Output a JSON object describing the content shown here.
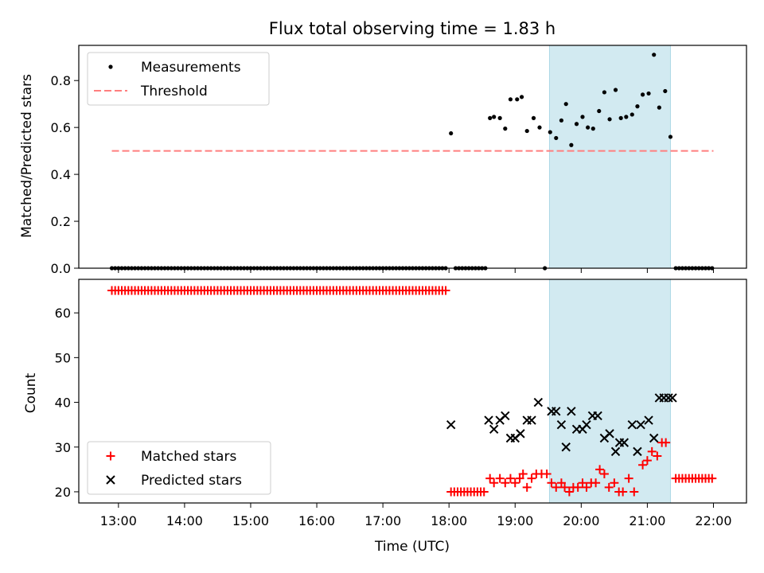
{
  "chart_data": {
    "title": "Flux total observing time = 1.83 h",
    "xlabel": "Time (UTC)",
    "x_ticks": [
      "13:00",
      "14:00",
      "15:00",
      "16:00",
      "17:00",
      "18:00",
      "19:00",
      "20:00",
      "21:00",
      "22:00"
    ],
    "xlim_hours": [
      12.4,
      22.5
    ],
    "highlight_band_hours": [
      19.52,
      21.35
    ],
    "highlight_color": "#add8e6",
    "panels": [
      {
        "type": "scatter",
        "ylabel": "Matched/Predicted stars",
        "ylim": [
          0,
          0.95
        ],
        "yticks": [
          "0.0",
          "0.2",
          "0.4",
          "0.6",
          "0.8"
        ],
        "legend_position": "upper-left",
        "legend": [
          "Measurements",
          "Threshold"
        ],
        "threshold": {
          "name": "Threshold",
          "value": 0.5,
          "x_range_hours": [
            12.9,
            22.0
          ],
          "color": "#ff7f7f",
          "style": "dashed"
        },
        "measurements": {
          "name": "Measurements",
          "color": "#000000",
          "zero_runs_hours": [
            [
              12.9,
              17.95,
              0.05
            ],
            [
              18.1,
              18.55,
              0.05
            ],
            [
              21.43,
              22.0,
              0.05
            ]
          ],
          "points": [
            [
              18.03,
              0.575
            ],
            [
              19.45,
              0.0
            ],
            [
              18.62,
              0.64
            ],
            [
              18.68,
              0.645
            ],
            [
              18.77,
              0.64
            ],
            [
              18.85,
              0.595
            ],
            [
              18.93,
              0.72
            ],
            [
              19.03,
              0.72
            ],
            [
              19.1,
              0.73
            ],
            [
              19.18,
              0.585
            ],
            [
              19.28,
              0.64
            ],
            [
              19.37,
              0.6
            ],
            [
              19.53,
              0.58
            ],
            [
              19.62,
              0.555
            ],
            [
              19.7,
              0.63
            ],
            [
              19.77,
              0.7
            ],
            [
              19.85,
              0.525
            ],
            [
              19.93,
              0.615
            ],
            [
              20.02,
              0.645
            ],
            [
              20.1,
              0.6
            ],
            [
              20.18,
              0.595
            ],
            [
              20.27,
              0.67
            ],
            [
              20.35,
              0.75
            ],
            [
              20.43,
              0.635
            ],
            [
              20.52,
              0.76
            ],
            [
              20.6,
              0.64
            ],
            [
              20.68,
              0.645
            ],
            [
              20.77,
              0.655
            ],
            [
              20.85,
              0.69
            ],
            [
              20.93,
              0.74
            ],
            [
              21.02,
              0.745
            ],
            [
              21.1,
              0.91
            ],
            [
              21.18,
              0.685
            ],
            [
              21.27,
              0.755
            ],
            [
              21.35,
              0.56
            ]
          ]
        }
      },
      {
        "type": "scatter",
        "ylabel": "Count",
        "ylim": [
          17.5,
          67.5
        ],
        "yticks": [
          "20",
          "30",
          "40",
          "50",
          "60"
        ],
        "legend_position": "lower-left",
        "legend": [
          "Matched stars",
          "Predicted stars"
        ],
        "matched": {
          "name": "Matched stars",
          "color": "#ff0000",
          "marker": "+",
          "runs_hours": [
            [
              12.9,
              17.97,
              0.05,
              65
            ],
            [
              18.03,
              18.55,
              0.05,
              20
            ],
            [
              21.43,
              22.0,
              0.05,
              23
            ]
          ],
          "points": [
            [
              18.62,
              23
            ],
            [
              18.68,
              22
            ],
            [
              18.77,
              23
            ],
            [
              18.85,
              22
            ],
            [
              18.93,
              23
            ],
            [
              19.0,
              22
            ],
            [
              19.07,
              23
            ],
            [
              19.12,
              24
            ],
            [
              19.18,
              21
            ],
            [
              19.25,
              23
            ],
            [
              19.32,
              24
            ],
            [
              19.4,
              24
            ],
            [
              19.48,
              24
            ],
            [
              19.55,
              22
            ],
            [
              19.62,
              21
            ],
            [
              19.7,
              22
            ],
            [
              19.75,
              21
            ],
            [
              19.82,
              20
            ],
            [
              19.88,
              21
            ],
            [
              19.95,
              21
            ],
            [
              20.02,
              22
            ],
            [
              20.08,
              21
            ],
            [
              20.15,
              22
            ],
            [
              20.22,
              22
            ],
            [
              20.28,
              25
            ],
            [
              20.35,
              24
            ],
            [
              20.42,
              21
            ],
            [
              20.5,
              22
            ],
            [
              20.57,
              20
            ],
            [
              20.63,
              20
            ],
            [
              20.72,
              23
            ],
            [
              20.8,
              20
            ],
            [
              20.93,
              26
            ],
            [
              21.0,
              27
            ],
            [
              21.07,
              29
            ],
            [
              21.15,
              28
            ],
            [
              21.22,
              31
            ],
            [
              21.28,
              31
            ]
          ]
        },
        "predicted": {
          "name": "Predicted stars",
          "color": "#000000",
          "marker": "x",
          "points": [
            [
              18.03,
              35
            ],
            [
              18.6,
              36
            ],
            [
              18.68,
              34
            ],
            [
              18.77,
              36
            ],
            [
              18.85,
              37
            ],
            [
              18.93,
              32
            ],
            [
              19.0,
              32
            ],
            [
              19.08,
              33
            ],
            [
              19.18,
              36
            ],
            [
              19.25,
              36
            ],
            [
              19.35,
              40
            ],
            [
              19.55,
              38
            ],
            [
              19.62,
              38
            ],
            [
              19.7,
              35
            ],
            [
              19.77,
              30
            ],
            [
              19.85,
              38
            ],
            [
              19.93,
              34
            ],
            [
              20.02,
              34
            ],
            [
              20.08,
              35
            ],
            [
              20.17,
              37
            ],
            [
              20.25,
              37
            ],
            [
              20.35,
              32
            ],
            [
              20.43,
              33
            ],
            [
              20.52,
              29
            ],
            [
              20.58,
              31
            ],
            [
              20.65,
              31
            ],
            [
              20.77,
              35
            ],
            [
              20.85,
              29
            ],
            [
              20.9,
              35
            ],
            [
              21.02,
              36
            ],
            [
              21.1,
              32
            ],
            [
              21.18,
              41
            ],
            [
              21.25,
              41
            ],
            [
              21.32,
              41
            ],
            [
              21.38,
              41
            ]
          ]
        }
      }
    ]
  }
}
